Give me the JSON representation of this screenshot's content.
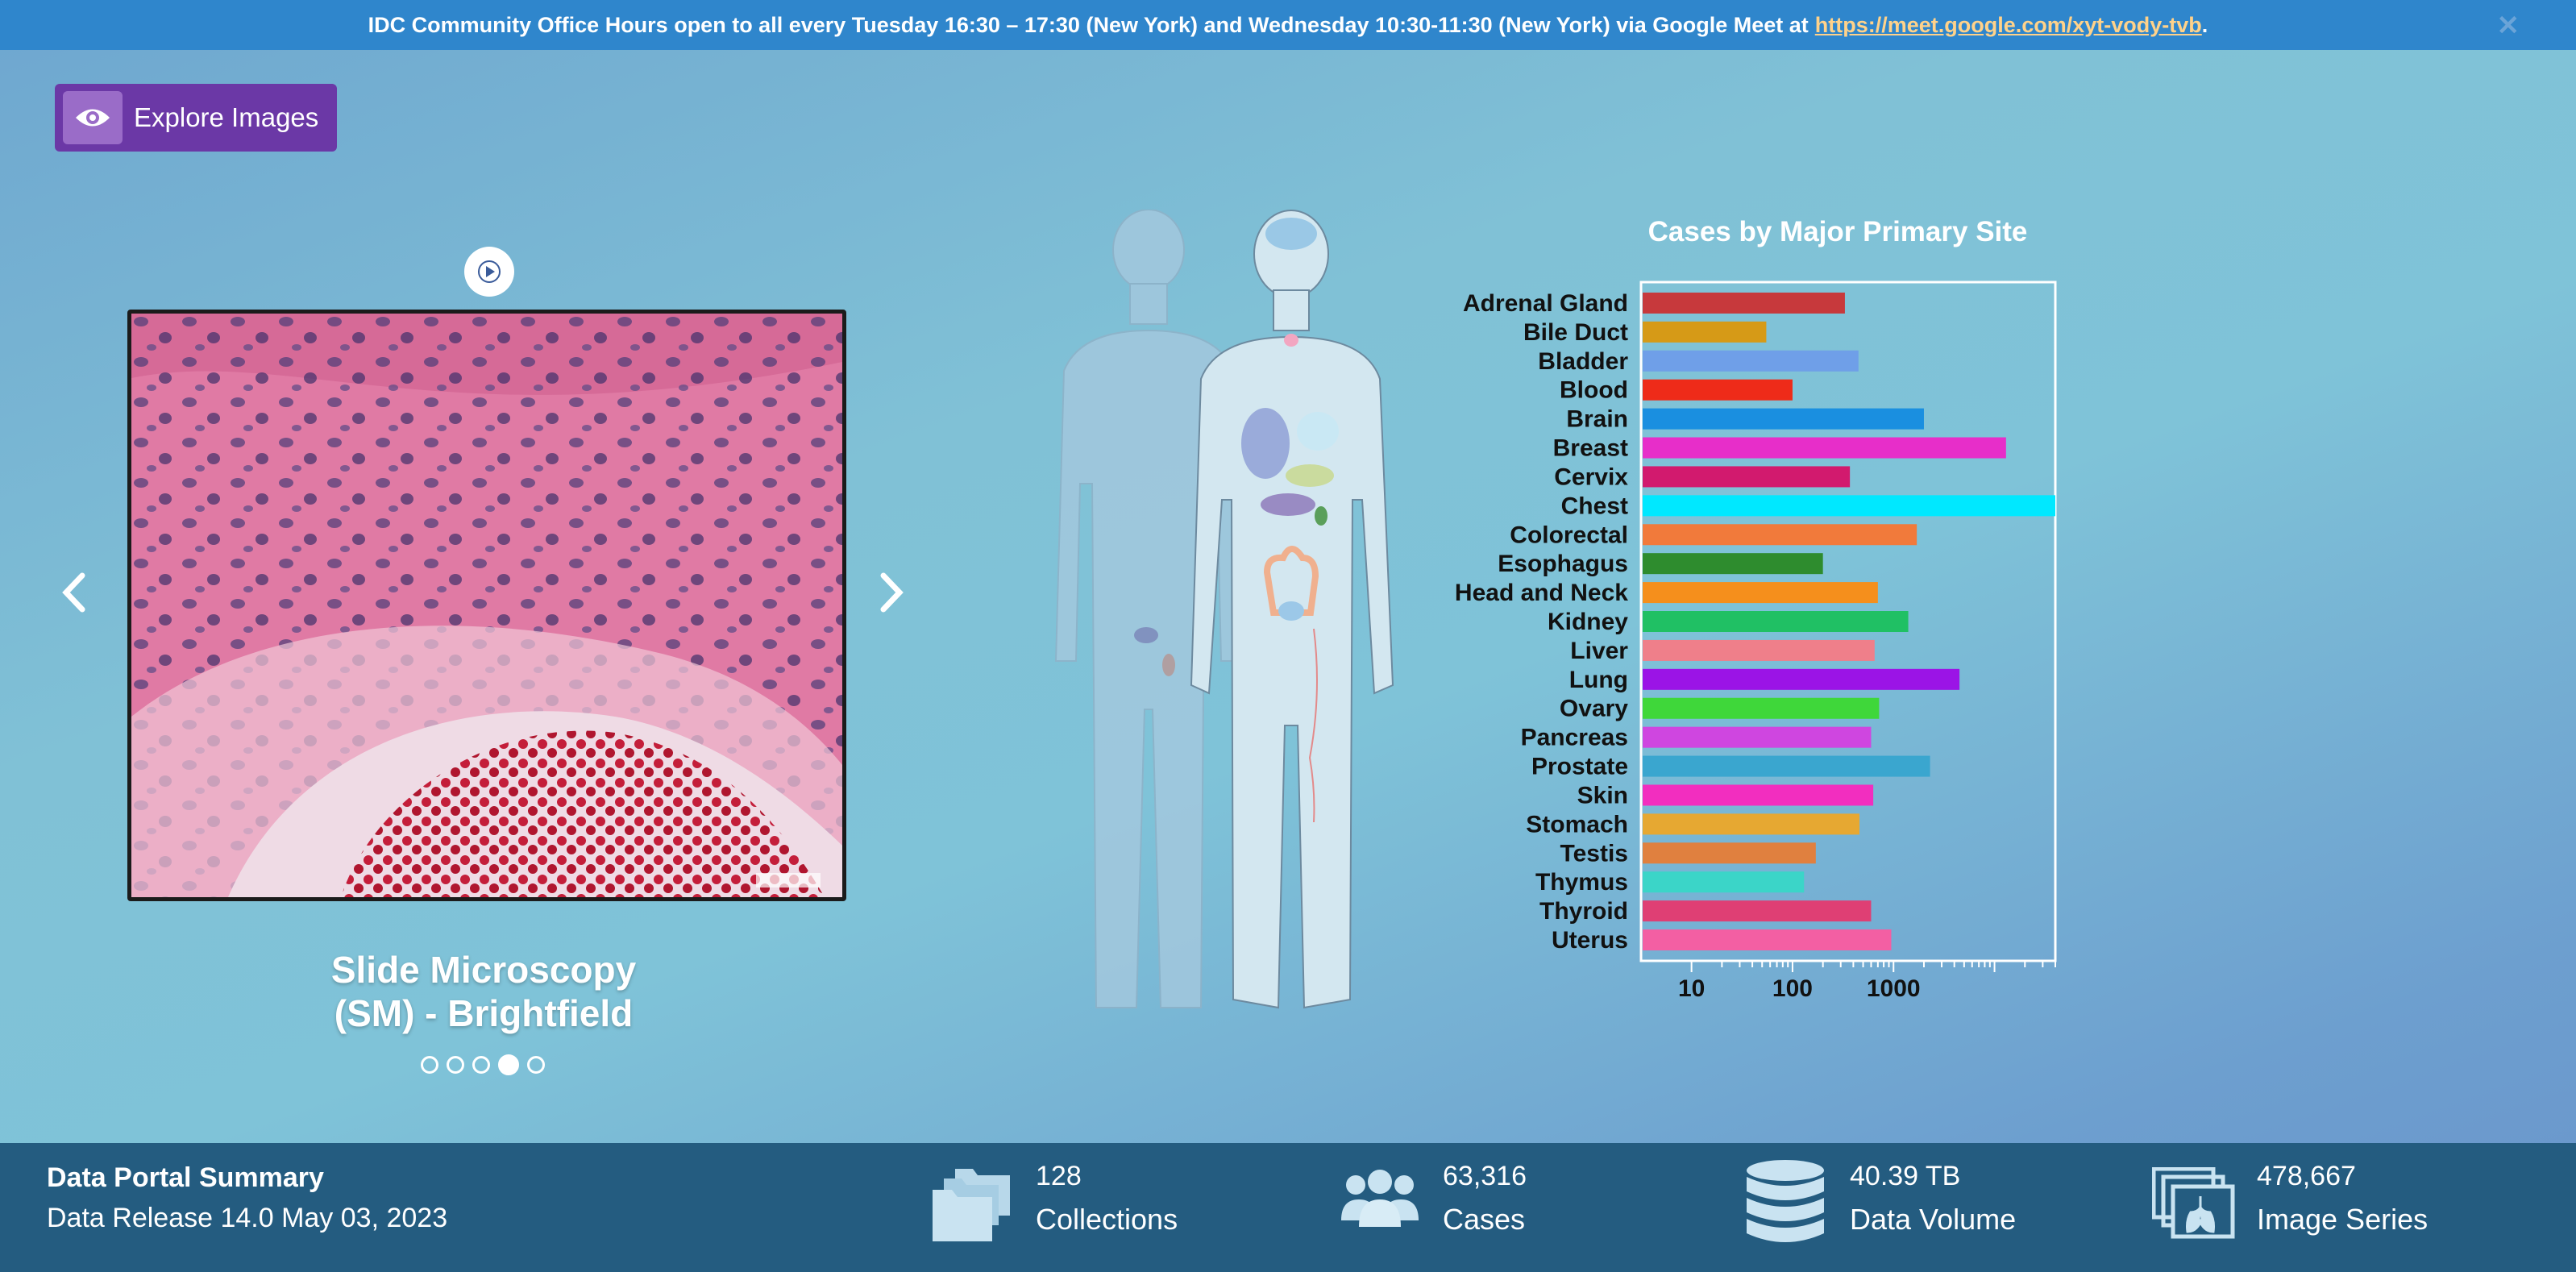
{
  "banner": {
    "text": "IDC Community Office Hours open to all every Tuesday 16:30 – 17:30 (New York) and Wednesday 10:30-11:30 (New York) via Google Meet at",
    "link": "https://meet.google.com/xyt-vody-tvb",
    "trailing": ".",
    "close_glyph": "✕"
  },
  "explore": {
    "label": "Explore Images",
    "icon": "eye-icon"
  },
  "carousel": {
    "caption_line1": "Slide Microscopy",
    "caption_line2": "(SM) - Brightfield",
    "slide_count": 5,
    "active_slide": 4,
    "play_icon": "play-icon",
    "prev_icon": "chevron-left-icon",
    "next_icon": "chevron-right-icon"
  },
  "chart_data": {
    "type": "bar",
    "orientation": "horizontal",
    "title": "Cases by Major Primary Site",
    "xscale": "log",
    "xticks": [
      "10",
      "100",
      "1000"
    ],
    "categories": [
      "Adrenal Gland",
      "Bile Duct",
      "Bladder",
      "Blood",
      "Brain",
      "Breast",
      "Cervix",
      "Chest",
      "Colorectal",
      "Esophagus",
      "Head and Neck",
      "Kidney",
      "Liver",
      "Lung",
      "Ovary",
      "Pancreas",
      "Prostate",
      "Skin",
      "Stomach",
      "Testis",
      "Thymus",
      "Thyroid",
      "Uterus"
    ],
    "values": [
      330,
      55,
      450,
      100,
      2000,
      13000,
      370,
      40000,
      1700,
      200,
      700,
      1400,
      650,
      4500,
      720,
      600,
      2300,
      630,
      460,
      170,
      130,
      600,
      950
    ],
    "colors": [
      "#c7393c",
      "#d69a17",
      "#6f9fe8",
      "#ee2b19",
      "#1a8fe0",
      "#e72ec9",
      "#d21a6e",
      "#00e8ff",
      "#f17a3b",
      "#2e8c2e",
      "#f58f1c",
      "#20c064",
      "#ef7f8a",
      "#9b14e6",
      "#3fd73a",
      "#cf46e0",
      "#3aa6cf",
      "#f22ebf",
      "#e6a832",
      "#e0803f",
      "#3bd5c8",
      "#df3f74",
      "#f35fa3"
    ]
  },
  "summary": {
    "title": "Data Portal Summary",
    "release": "Data Release 14.0 May 03, 2023",
    "stats": [
      {
        "value": "128",
        "label": "Collections",
        "icon": "folders-icon"
      },
      {
        "value": "63,316",
        "label": "Cases",
        "icon": "users-icon"
      },
      {
        "value": "40.39 TB",
        "label": "Data Volume",
        "icon": "database-icon"
      },
      {
        "value": "478,667",
        "label": "Image Series",
        "icon": "lung-images-icon"
      }
    ]
  }
}
